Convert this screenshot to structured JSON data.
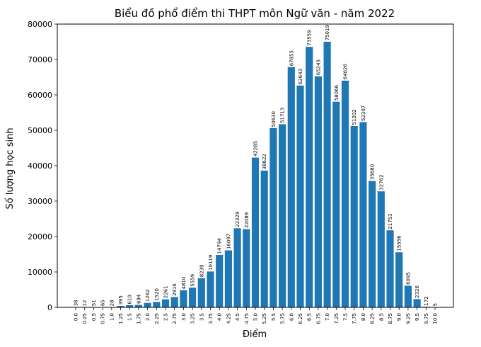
{
  "chart_data": {
    "type": "bar",
    "title": "Biểu đồ phổ điểm thi THPT môn Ngữ văn - năm 2022",
    "xlabel": "Điểm",
    "ylabel": "Số lượng học sinh",
    "ylim": [
      0,
      80000
    ],
    "yticks": [
      "0",
      "10000",
      "20000",
      "30000",
      "40000",
      "50000",
      "60000",
      "70000",
      "80000"
    ],
    "ytick_values": [
      0,
      10000,
      20000,
      30000,
      40000,
      50000,
      60000,
      70000,
      80000
    ],
    "grid": false,
    "bar_color": "#1f77b4",
    "categories": [
      "0.0",
      "0.25",
      "0.5",
      "0.75",
      "1.0",
      "1.25",
      "1.5",
      "1.75",
      "2.0",
      "2.25",
      "2.5",
      "2.75",
      "3.0",
      "3.25",
      "3.5",
      "3.75",
      "4.0",
      "4.25",
      "4.5",
      "4.75",
      "5.0",
      "5.25",
      "5.5",
      "5.75",
      "6.0",
      "6.25",
      "6.5",
      "6.75",
      "7.0",
      "7.25",
      "7.5",
      "7.75",
      "8.0",
      "8.25",
      "8.5",
      "8.75",
      "9.0",
      "9.25",
      "9.5",
      "9.75",
      "10.0"
    ],
    "values": [
      38,
      12,
      51,
      65,
      28,
      395,
      610,
      694,
      1262,
      1520,
      2261,
      2916,
      4810,
      5559,
      8239,
      10119,
      14794,
      16097,
      22329,
      22089,
      42285,
      38622,
      50630,
      51713,
      67855,
      62643,
      73559,
      65243,
      75019,
      58066,
      64026,
      51202,
      52307,
      35680,
      32762,
      21753,
      15556,
      6095,
      2326,
      172,
      5
    ],
    "value_labels": [
      "38",
      "12",
      "51",
      "65",
      "28",
      "395",
      "610",
      "694",
      "1262",
      "1520",
      "2261",
      "2916",
      "4810",
      "5559",
      "8239",
      "10119",
      "14794",
      "16097",
      "22329",
      "22089",
      "42285",
      "38622",
      "50630",
      "51713",
      "67855",
      "62643",
      "73559",
      "65243",
      "75019",
      "58066",
      "64026",
      "51202",
      "52307",
      "35680",
      "32762",
      "21753",
      "15556",
      "6095",
      "2326",
      "172",
      "5"
    ]
  }
}
